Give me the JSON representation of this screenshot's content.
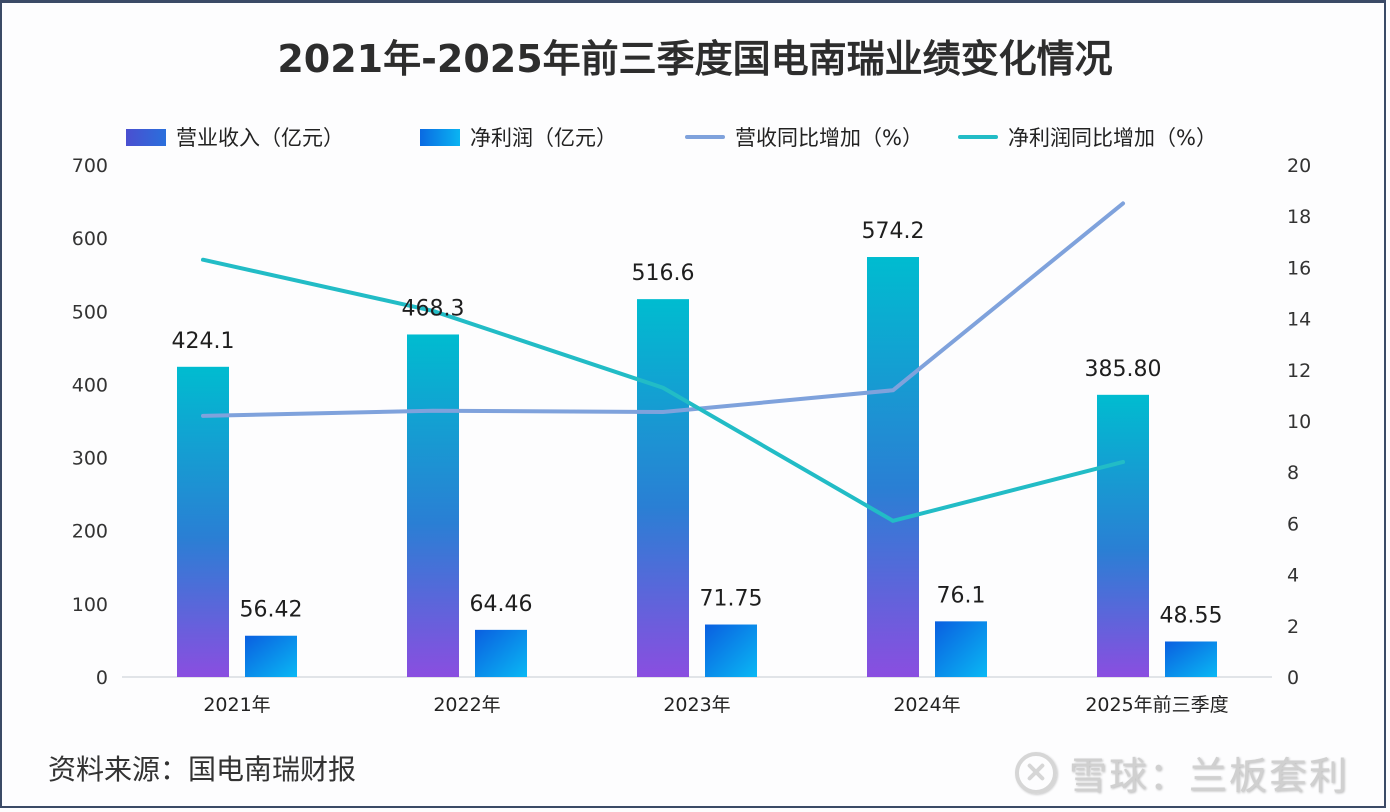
{
  "chart_data": {
    "type": "bar",
    "title": "2021年-2025年前三季度国电南瑞业绩变化情况",
    "categories": [
      "2021年",
      "2022年",
      "2023年",
      "2024年",
      "2025年前三季度"
    ],
    "series": [
      {
        "name": "营业收入（亿元）",
        "type": "bar",
        "axis": "left",
        "values": [
          424.1,
          468.3,
          516.6,
          574.2,
          385.8
        ],
        "labels": [
          "424.1",
          "468.3",
          "516.6",
          "574.2",
          "385.80"
        ]
      },
      {
        "name": "净利润（亿元）",
        "type": "bar",
        "axis": "left",
        "values": [
          56.42,
          64.46,
          71.75,
          76.1,
          48.55
        ],
        "labels": [
          "56.42",
          "64.46",
          "71.75",
          "76.1",
          "48.55"
        ]
      },
      {
        "name": "营收同比增加（%）",
        "type": "line",
        "axis": "right",
        "values": [
          10.2,
          10.4,
          10.35,
          11.2,
          18.5
        ]
      },
      {
        "name": "净利润同比增加（%）",
        "type": "line",
        "axis": "right",
        "values": [
          16.3,
          14.3,
          11.3,
          6.1,
          8.4
        ]
      }
    ],
    "y_left": {
      "range": [
        0,
        700
      ],
      "ticks": [
        0,
        100,
        200,
        300,
        400,
        500,
        600,
        700
      ]
    },
    "y_right": {
      "range": [
        0,
        20
      ],
      "ticks": [
        0,
        2,
        4,
        6,
        8,
        10,
        12,
        14,
        16,
        18,
        20
      ]
    },
    "xlabel": "",
    "ylabel": "",
    "grid": false,
    "legend_position": "top",
    "colors": {
      "revenue_bar_top": "#00bcd0",
      "revenue_bar_mid": "#2b7fd6",
      "revenue_bar_bottom": "#8a4ee0",
      "profit_bar_start": "#0a63e0",
      "profit_bar_end": "#0ab4f2",
      "revenue_line": "#7fa2dc",
      "profit_line": "#22bcc6"
    }
  },
  "footer": {
    "source": "资料来源：国电南瑞财报",
    "watermark": "雪球：兰板套利"
  }
}
